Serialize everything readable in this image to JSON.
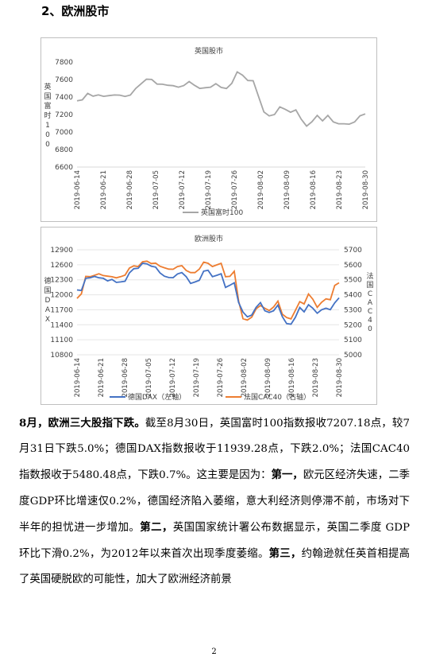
{
  "section": {
    "title": "2、欧洲股市"
  },
  "chart_data": [
    {
      "type": "line",
      "title": "英国股市",
      "ylabel": "英国富时100",
      "ylim": [
        6600,
        7800
      ],
      "yticks": [
        6600,
        6800,
        7000,
        7200,
        7400,
        7600,
        7800
      ],
      "xticks": [
        "2019-06-14",
        "2019-06-21",
        "2019-06-28",
        "2019-07-05",
        "2019-07-12",
        "2019-07-19",
        "2019-07-26",
        "2019-08-02",
        "2019-08-09",
        "2019-08-16",
        "2019-08-23",
        "2019-08-30"
      ],
      "series": [
        {
          "name": "英国富时100",
          "color": "#a6a6a6",
          "values": [
            7357,
            7368,
            7442,
            7410,
            7425,
            7408,
            7416,
            7424,
            7422,
            7407,
            7423,
            7498,
            7552,
            7604,
            7601,
            7548,
            7546,
            7535,
            7530,
            7513,
            7531,
            7577,
            7535,
            7498,
            7506,
            7513,
            7553,
            7510,
            7497,
            7556,
            7687,
            7650,
            7589,
            7586,
            7406,
            7230,
            7185,
            7200,
            7287,
            7260,
            7226,
            7253,
            7147,
            7067,
            7117,
            7190,
            7127,
            7190,
            7116,
            7095,
            7095,
            7090,
            7115,
            7185,
            7207
          ]
        }
      ]
    },
    {
      "type": "line",
      "title": "欧洲股市",
      "ylabel_left": "德国DAX",
      "ylabel_right": "法国CAC40",
      "ylim_left": [
        10800,
        12900
      ],
      "yticks_left": [
        10800,
        11100,
        11400,
        11700,
        12000,
        12300,
        12600,
        12900
      ],
      "ylim_right": [
        5000,
        5700
      ],
      "yticks_right": [
        5000,
        5100,
        5200,
        5300,
        5400,
        5500,
        5600,
        5700
      ],
      "xticks": [
        "2019-06-14",
        "2019-06-21",
        "2019-06-28",
        "2019-07-05",
        "2019-07-12",
        "2019-07-19",
        "2019-07-26",
        "2019-08-02",
        "2019-08-09",
        "2019-08-16",
        "2019-08-23",
        "2019-08-30"
      ],
      "series": [
        {
          "name": "德国DAX（左轴）",
          "axis": "left",
          "color": "#4472c4",
          "values": [
            12096,
            12085,
            12331,
            12340,
            12367,
            12340,
            12330,
            12278,
            12307,
            12248,
            12258,
            12271,
            12439,
            12521,
            12530,
            12629,
            12618,
            12573,
            12553,
            12437,
            12372,
            12344,
            12341,
            12416,
            12444,
            12363,
            12227,
            12256,
            12289,
            12472,
            12491,
            12362,
            12390,
            12419,
            12147,
            12191,
            12239,
            11845,
            11654,
            11559,
            11594,
            11748,
            11843,
            11680,
            11646,
            11679,
            11793,
            11564,
            11423,
            11412,
            11549,
            11746,
            11658,
            11801,
            11731,
            11630,
            11701,
            11731,
            11702,
            11838,
            11939
          ]
        },
        {
          "name": "法国CAC40（右轴）",
          "axis": "right",
          "color": "#ed7d31",
          "values": [
            5376,
            5406,
            5523,
            5521,
            5530,
            5540,
            5528,
            5524,
            5520,
            5513,
            5521,
            5531,
            5578,
            5593,
            5588,
            5620,
            5624,
            5608,
            5611,
            5590,
            5580,
            5571,
            5570,
            5588,
            5594,
            5562,
            5548,
            5548,
            5571,
            5618,
            5610,
            5588,
            5599,
            5610,
            5520,
            5523,
            5557,
            5359,
            5240,
            5231,
            5251,
            5306,
            5328,
            5310,
            5295,
            5318,
            5358,
            5271,
            5248,
            5239,
            5296,
            5354,
            5339,
            5405,
            5370,
            5316,
            5350,
            5373,
            5367,
            5462,
            5480
          ]
        }
      ]
    }
  ],
  "paragraph": {
    "lead": "8月，欧洲三大股指下跌。",
    "text1": "截至8月30日，英国富时100指数报收7207.18点，较7月31日下跌5.0%；德国DAX指数报收于11939.28点，下跌2.0%；法国CAC40指数报收于5480.48点，下跌0.7%。这主要是因为：",
    "first_label": "第一，",
    "text2": "欧元区经济失速，二季度GDP环比增速仅0.2%，德国经济陷入萎缩，意大利经济则停滞不前，市场对下半年的担忧进一步增加。",
    "second_label": "第二，",
    "text3": "英国国家统计署公布数据显示，英国二季度 GDP 环比下滑0.2%，为2012年以来首次出现季度萎缩。",
    "third_label": "第三，",
    "text4": "约翰逊就任英首相提高了英国硬脱欧的可能性，加大了欧洲经济前景"
  },
  "page_number": "2"
}
